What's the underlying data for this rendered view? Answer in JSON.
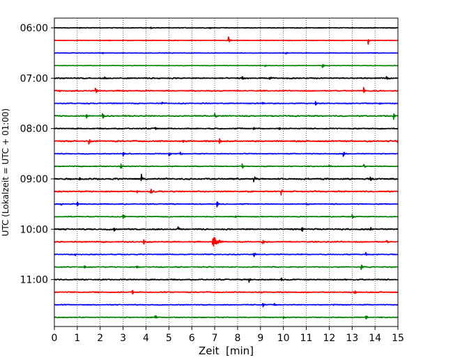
{
  "chart_data": {
    "type": "line",
    "title": "",
    "xlabel": "Zeit  [min]",
    "ylabel": "UTC (Lokalzeit = UTC + 01:00)",
    "xlim": [
      0,
      15
    ],
    "x_ticks": [
      0,
      1,
      2,
      3,
      4,
      5,
      6,
      7,
      8,
      9,
      10,
      11,
      12,
      13,
      14,
      15
    ],
    "y_tick_labels": [
      "06:00",
      "07:00",
      "08:00",
      "09:00",
      "10:00",
      "11:00"
    ],
    "y_tick_rows": [
      0,
      4,
      8,
      12,
      16,
      20
    ],
    "grid": "vertical dotted at each minute",
    "trace_interval_min": 15,
    "trace_colors": [
      "#000000",
      "#ff0000",
      "#0000ff",
      "#008000"
    ],
    "traces": [
      {
        "start": "06:00",
        "noise": 0.06,
        "events": [
          [
            6.8,
            0.18
          ],
          [
            4.2,
            0.15
          ],
          [
            1.1,
            0.12
          ]
        ]
      },
      {
        "start": "06:15",
        "noise": 0.05,
        "events": [
          [
            7.6,
            0.7
          ],
          [
            13.7,
            0.6
          ],
          [
            2.4,
            0.15
          ]
        ]
      },
      {
        "start": "06:30",
        "noise": 0.05,
        "events": [
          [
            10.1,
            0.3
          ],
          [
            2.1,
            0.12
          ]
        ]
      },
      {
        "start": "06:45",
        "noise": 0.04,
        "events": [
          [
            11.7,
            0.45
          ],
          [
            9.2,
            0.15
          ]
        ]
      },
      {
        "start": "07:00",
        "noise": 0.1,
        "events": [
          [
            8.2,
            0.55
          ],
          [
            9.4,
            0.25
          ],
          [
            2.2,
            0.2
          ],
          [
            14.5,
            0.25
          ]
        ]
      },
      {
        "start": "07:15",
        "noise": 0.09,
        "events": [
          [
            1.8,
            0.65
          ],
          [
            13.5,
            0.55
          ],
          [
            0.2,
            0.2
          ]
        ]
      },
      {
        "start": "07:30",
        "noise": 0.08,
        "events": [
          [
            9.1,
            0.3
          ],
          [
            11.4,
            0.35
          ],
          [
            4.7,
            0.25
          ],
          [
            14.2,
            0.25
          ]
        ]
      },
      {
        "start": "07:45",
        "noise": 0.1,
        "events": [
          [
            1.4,
            0.45
          ],
          [
            2.1,
            0.5
          ],
          [
            7.0,
            0.45
          ],
          [
            14.8,
            0.6
          ]
        ]
      },
      {
        "start": "08:00",
        "noise": 0.09,
        "events": [
          [
            8.7,
            0.55
          ],
          [
            9.8,
            0.3
          ],
          [
            4.4,
            0.25
          ]
        ]
      },
      {
        "start": "08:15",
        "noise": 0.12,
        "events": [
          [
            1.5,
            0.6
          ],
          [
            7.2,
            0.5
          ],
          [
            15.0,
            0.65
          ],
          [
            5.6,
            0.3
          ]
        ]
      },
      {
        "start": "08:30",
        "noise": 0.07,
        "events": [
          [
            5.0,
            0.5
          ],
          [
            12.6,
            0.6
          ],
          [
            3.0,
            0.35
          ],
          [
            5.5,
            0.3
          ]
        ]
      },
      {
        "start": "08:45",
        "noise": 0.08,
        "events": [
          [
            2.9,
            0.55
          ],
          [
            8.2,
            0.55
          ],
          [
            12.0,
            0.3
          ],
          [
            13.5,
            0.55
          ]
        ]
      },
      {
        "start": "09:00",
        "noise": 0.13,
        "events": [
          [
            3.8,
            0.7
          ],
          [
            8.7,
            0.55
          ],
          [
            13.8,
            0.6
          ],
          [
            1.1,
            0.25
          ]
        ]
      },
      {
        "start": "09:15",
        "noise": 0.1,
        "events": [
          [
            4.2,
            0.55
          ],
          [
            9.9,
            0.6
          ],
          [
            3.6,
            0.35
          ]
        ]
      },
      {
        "start": "09:30",
        "noise": 0.08,
        "events": [
          [
            1.0,
            0.45
          ],
          [
            7.1,
            0.45
          ],
          [
            11.0,
            0.3
          ],
          [
            0.3,
            0.2
          ]
        ]
      },
      {
        "start": "09:45",
        "noise": 0.08,
        "events": [
          [
            3.0,
            0.45
          ],
          [
            13.0,
            0.45
          ],
          [
            7.9,
            0.2
          ]
        ]
      },
      {
        "start": "10:00",
        "noise": 0.11,
        "events": [
          [
            5.4,
            0.55
          ],
          [
            10.8,
            0.6
          ],
          [
            2.6,
            0.3
          ],
          [
            13.8,
            0.3
          ]
        ]
      },
      {
        "start": "10:15",
        "noise": 0.1,
        "events": [
          [
            6.9,
            1.0
          ],
          [
            3.9,
            0.45
          ],
          [
            9.1,
            0.45
          ],
          [
            14.5,
            0.3
          ]
        ]
      },
      {
        "start": "10:30",
        "noise": 0.08,
        "events": [
          [
            0.9,
            0.45
          ],
          [
            8.7,
            0.5
          ],
          [
            13.6,
            0.3
          ]
        ]
      },
      {
        "start": "10:45",
        "noise": 0.08,
        "events": [
          [
            1.3,
            0.35
          ],
          [
            3.6,
            0.35
          ],
          [
            13.4,
            0.45
          ]
        ]
      },
      {
        "start": "11:00",
        "noise": 0.09,
        "events": [
          [
            8.5,
            0.45
          ],
          [
            9.9,
            0.3
          ],
          [
            12.7,
            0.2
          ]
        ]
      },
      {
        "start": "11:15",
        "noise": 0.09,
        "events": [
          [
            3.4,
            0.4
          ],
          [
            13.1,
            0.45
          ],
          [
            9.0,
            0.2
          ]
        ]
      },
      {
        "start": "11:30",
        "noise": 0.07,
        "events": [
          [
            9.1,
            0.4
          ],
          [
            9.6,
            0.3
          ],
          [
            12.2,
            0.2
          ]
        ]
      },
      {
        "start": "11:45",
        "noise": 0.07,
        "events": [
          [
            4.4,
            0.45
          ],
          [
            13.6,
            0.5
          ],
          [
            10.0,
            0.25
          ]
        ]
      }
    ]
  }
}
